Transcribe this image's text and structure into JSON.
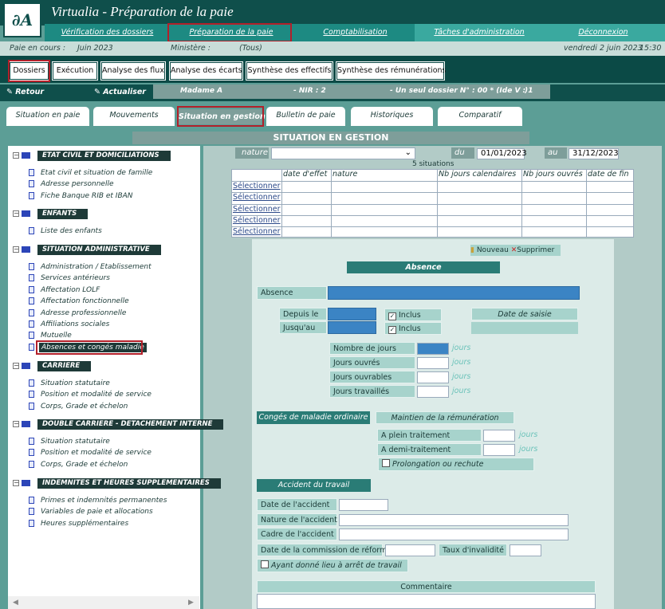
{
  "header": {
    "title": "Virtualia - Préparation de la paie",
    "nav": [
      "Vérification des dossiers",
      "Préparation de la paie",
      "Comptabilisation",
      "Tâches d'administration",
      "Déconnexion"
    ]
  },
  "status": {
    "period_label": "Paie en cours :",
    "period": "Juin 2023",
    "ministry_label": "Ministère :",
    "ministry": "(Tous)",
    "date": "vendredi 2 juin 2023",
    "time": "15:30"
  },
  "main_tabs": [
    "Dossiers",
    "Exécution",
    "Analyse des flux",
    "Analyse des écarts",
    "Synthèse des effectifs",
    "Synthèse des rémunérations"
  ],
  "toolbar": {
    "back": "Retour",
    "refresh": "Actualiser",
    "person": "Madame A",
    "nir": "- NIR : 2",
    "dossier": "- Un seul dossier N° : 00 * (Ide V : 1",
    "end": ")"
  },
  "sub_tabs": [
    "Situation en paie",
    "Mouvements",
    "Situation en gestion",
    "Bulletin de paie",
    "Historiques",
    "Comparatif"
  ],
  "section_title": "SITUATION EN GESTION",
  "tree": [
    {
      "label": "ETAT CIVIL ET DOMICILIATIONS",
      "items": [
        "Etat civil et situation de famille",
        "Adresse personnelle",
        "Fiche Banque RIB et IBAN"
      ]
    },
    {
      "label": "ENFANTS",
      "items": [
        "Liste des enfants"
      ]
    },
    {
      "label": "SITUATION ADMINISTRATIVE",
      "items": [
        "Administration / Etablissement",
        "Services antérieurs",
        "Affectation LOLF",
        "Affectation fonctionnelle",
        "Adresse professionnelle",
        "Affiliations sociales",
        "Mutuelle",
        "Absences et congés maladie"
      ]
    },
    {
      "label": "CARRIERE",
      "items": [
        "Situation statutaire",
        "Position et modalité de service",
        "Corps, Grade et échelon"
      ]
    },
    {
      "label": "DOUBLE CARRIERE - DETACHEMENT INTERNE",
      "items": [
        "Situation statutaire",
        "Position et modalité de service",
        "Corps, Grade et échelon"
      ]
    },
    {
      "label": "INDEMNITES ET HEURES SUPPLEMENTAIRES",
      "items": [
        "Primes et indemnités permanentes",
        "Variables de paie et allocations",
        "Heures supplémentaires"
      ]
    }
  ],
  "filter": {
    "nature_label": "nature",
    "from_label": "du",
    "from": "01/01/2023",
    "to_label": "au",
    "to": "31/12/2023",
    "count": "5 situations"
  },
  "table": {
    "headers": [
      "date d'effet",
      "nature",
      "Nb jours calendaires",
      "Nb jours ouvrés",
      "date de fin"
    ],
    "row_links": [
      "Sélectionner",
      "Sélectionner",
      "Sélectionner",
      "Sélectionner",
      "Sélectionner"
    ]
  },
  "form": {
    "new": "Nouveau",
    "delete": "Supprimer",
    "header": "Absence",
    "absence": "Absence",
    "from": "Depuis le",
    "to": "Jusqu'au",
    "included": "Inclus",
    "included2": "Inclus",
    "entry_date": "Date de saisie",
    "days": [
      "Nombre de jours",
      "Jours ouvrés",
      "Jours ouvrables",
      "Jours travaillés"
    ],
    "days_unit": [
      "jours",
      "jours",
      "jours",
      "jours"
    ],
    "sick_leave": "Congés de maladie ordinaire",
    "pay": "Maintien de la rémunération",
    "full": "A plein traitement",
    "half": "A demi-traitement",
    "pay_unit": [
      "jours",
      "jours"
    ],
    "extension": "Prolongation ou rechute",
    "accident": "Accident du travail",
    "accident_date": "Date de l'accident",
    "accident_nature": "Nature de l'accident",
    "accident_frame": "Cadre de l'accident",
    "commission_date": "Date de la commission de réforme",
    "disability": "Taux d'invalidité",
    "stoppage": "Ayant donné lieu à arrêt de travail",
    "comment": "Commentaire"
  }
}
